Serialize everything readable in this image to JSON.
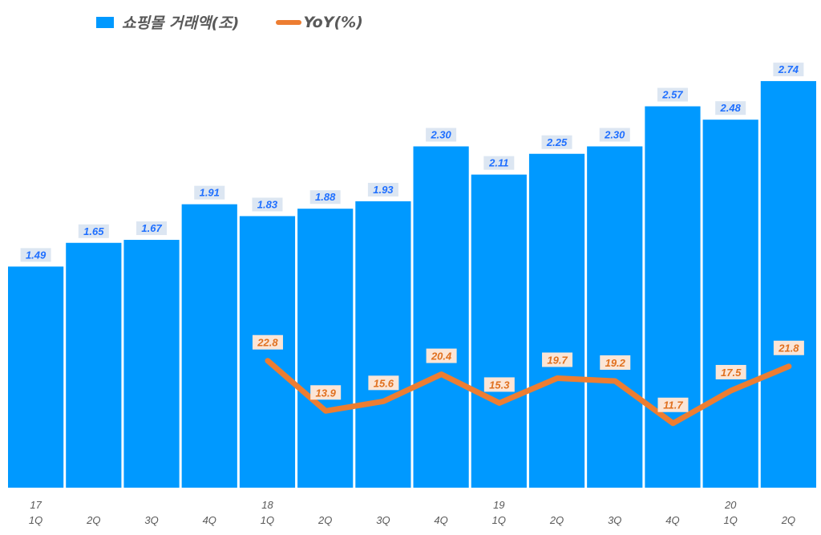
{
  "chart_data": {
    "type": "bar+line",
    "categories": [
      "1Q",
      "2Q",
      "3Q",
      "4Q",
      "1Q",
      "2Q",
      "3Q",
      "4Q",
      "1Q",
      "2Q",
      "3Q",
      "4Q",
      "1Q",
      "2Q"
    ],
    "year_labels": [
      "17",
      "",
      "",
      "",
      "18",
      "",
      "",
      "",
      "19",
      "",
      "",
      "",
      "20",
      ""
    ],
    "series": [
      {
        "name": "쇼핑몰 거래액(조)",
        "type": "bar",
        "axis": "primary",
        "color": "#0099FF",
        "values": [
          1.49,
          1.65,
          1.67,
          1.91,
          1.83,
          1.88,
          1.93,
          2.3,
          2.11,
          2.25,
          2.3,
          2.57,
          2.48,
          2.74
        ],
        "labels": [
          "1.49",
          "1.65",
          "1.67",
          "1.91",
          "1.83",
          "1.88",
          "1.93",
          "2.30",
          "2.11",
          "2.25",
          "2.30",
          "2.57",
          "2.48",
          "2.74"
        ]
      },
      {
        "name": "YoY(%)",
        "type": "line",
        "axis": "secondary",
        "color": "#ED7D31",
        "values": [
          null,
          null,
          null,
          null,
          22.8,
          13.9,
          15.6,
          20.4,
          15.3,
          19.7,
          19.2,
          11.7,
          17.5,
          21.8
        ],
        "labels": [
          "",
          "",
          "",
          "",
          "22.8",
          "13.9",
          "15.6",
          "20.4",
          "15.3",
          "19.7",
          "19.2",
          "11.7",
          "17.5",
          "21.8"
        ]
      }
    ],
    "legend_position": "top-left",
    "grid": false
  }
}
